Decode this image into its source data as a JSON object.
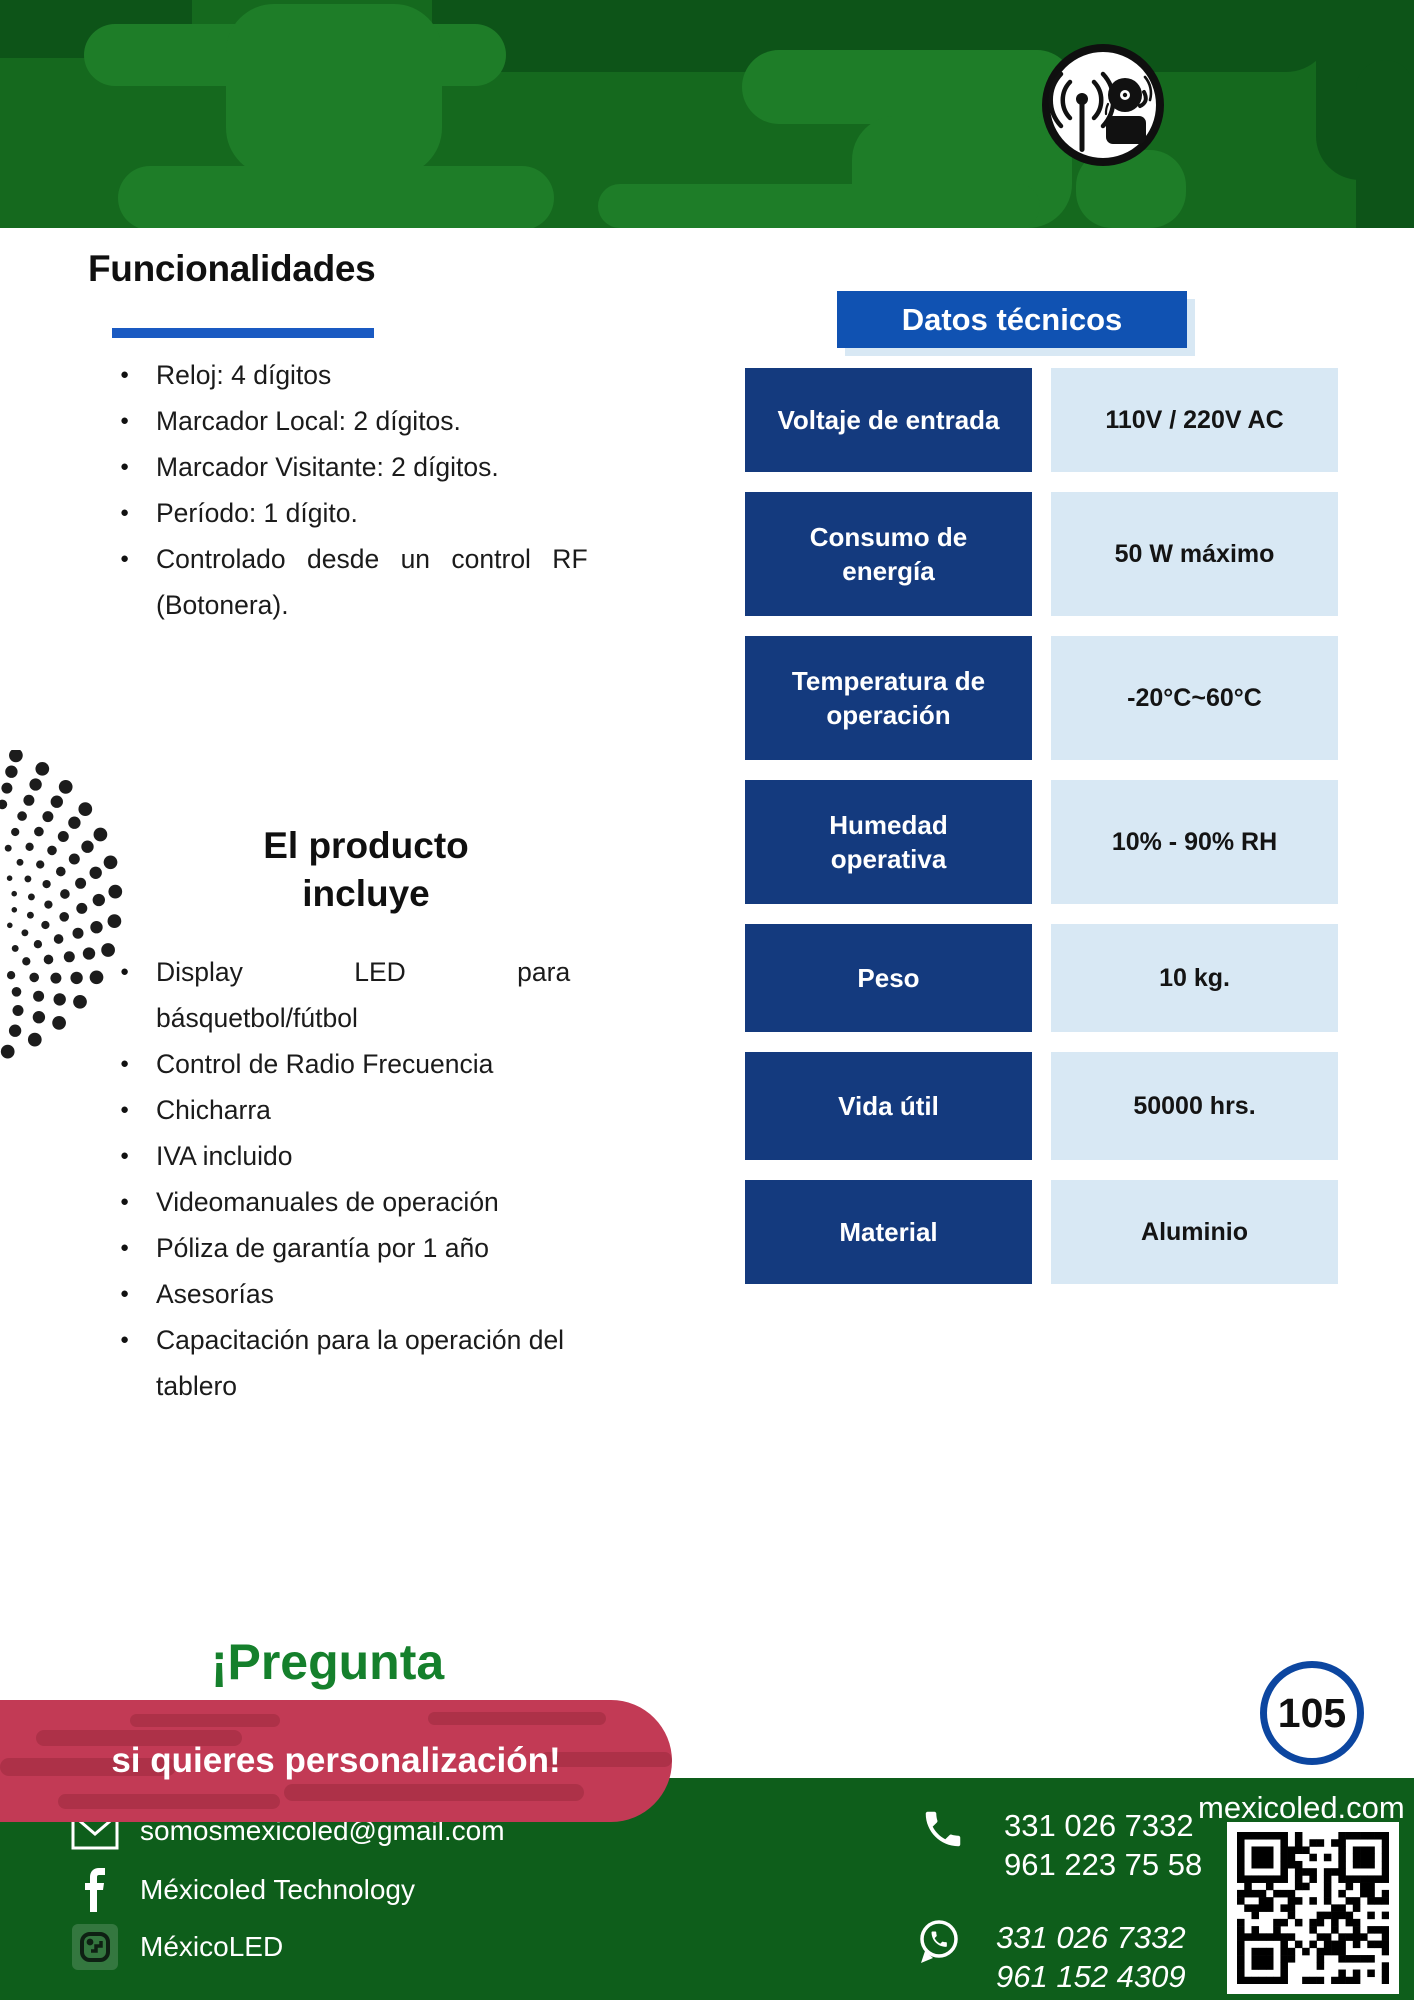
{
  "header": {
    "badge_icon": "antenna-bell-icon"
  },
  "functionalities": {
    "title": "Funcionalidades",
    "items": [
      "Reloj: 4 dígitos",
      "Marcador Local: 2 dígitos.",
      "Marcador Visitante: 2 dígitos.",
      "Período: 1 dígito.",
      [
        "Controlado desde un control RF",
        "(Botonera)."
      ]
    ]
  },
  "tech_data": {
    "title": "Datos técnicos",
    "rows": [
      {
        "label": "Voltaje de entrada",
        "value": "110V / 220V AC"
      },
      {
        "label": "Consumo de\nenergía",
        "value": "50 W máximo"
      },
      {
        "label": "Temperatura de\noperación",
        "value": "-20°C~60°C"
      },
      {
        "label": "Humedad\noperativa",
        "value": "10% - 90% RH"
      },
      {
        "label": "Peso",
        "value": "10 kg."
      },
      {
        "label": "Vida útil",
        "value": "50000 hrs."
      },
      {
        "label": "Material",
        "value": "Aluminio"
      }
    ]
  },
  "includes": {
    "title_line1": "El producto",
    "title_line2": "incluye",
    "items": [
      [
        "Display LED para",
        "básquetbol/fútbol"
      ],
      "Control de Radio Frecuencia",
      "Chicharra",
      "IVA incluido",
      "Videomanuales de operación",
      "Póliza de garantía por 1 año",
      "Asesorías",
      [
        "Capacitación para la operación del",
        "tablero"
      ]
    ]
  },
  "cta": {
    "line1": "¡Pregunta",
    "line2": "si quieres personalización!"
  },
  "page_number": "105",
  "footer": {
    "website": "mexicoled.com",
    "email": {
      "icon": "email-icon",
      "text": "somosmexicoled@gmail.com"
    },
    "facebook": {
      "icon": "facebook-icon",
      "text": "Méxicoled Technology"
    },
    "tiktok": {
      "icon": "tiktok-icon",
      "text": "MéxicoLED"
    },
    "phone": {
      "icon": "phone-icon",
      "lines": [
        "331 026 7332",
        "961 223 75 58"
      ]
    },
    "whatsapp": {
      "icon": "whatsapp-icon",
      "lines": [
        "331 026 7332",
        "961 152 4309"
      ]
    },
    "qr": "qr-code"
  },
  "colors": {
    "header_green": "#15691e",
    "header_green_light": "#1e7d28",
    "header_green_dark": "#0d5418",
    "footer_green": "#0e5e1b",
    "navy": "#143a7e",
    "light_blue": "#d8e8f4",
    "title_blue": "#1052b2",
    "underline_blue": "#1a5ac2",
    "cta_green": "#15802c",
    "banner_red": "#c23a55",
    "banner_red_dark": "#a62f45",
    "page_circle_blue": "#0c46a0"
  }
}
